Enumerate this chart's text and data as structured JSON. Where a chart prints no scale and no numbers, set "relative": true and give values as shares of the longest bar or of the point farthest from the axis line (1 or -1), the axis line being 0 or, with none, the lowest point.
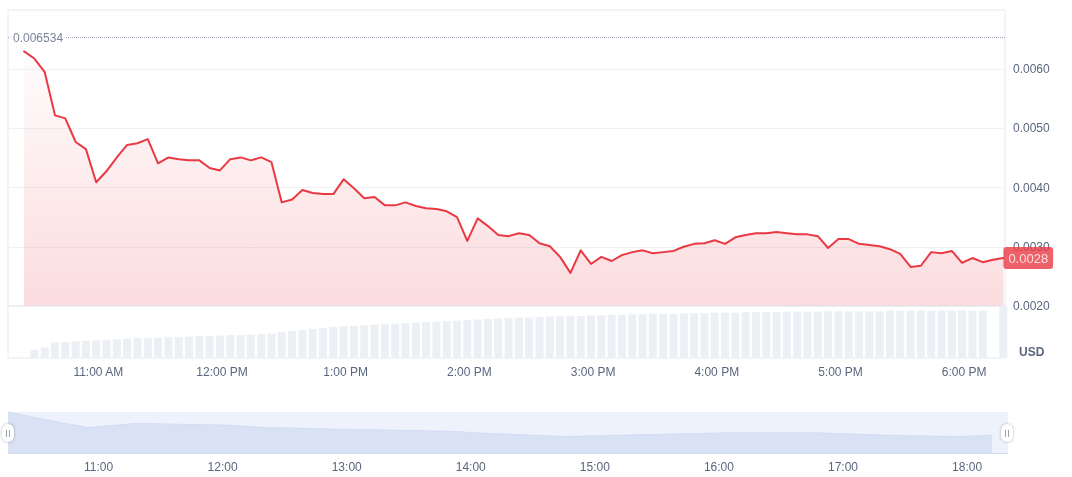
{
  "chart_data": [
    {
      "type": "area",
      "ylabel": "USD",
      "color": "#ea3943",
      "xlim": [
        10.27,
        18.33
      ],
      "ylim": [
        0.002,
        0.007
      ],
      "yticks": [
        {
          "value": 0.002,
          "label": "0.0020"
        },
        {
          "value": 0.003,
          "label": "0.0030"
        },
        {
          "value": 0.004,
          "label": "0.0040"
        },
        {
          "value": 0.005,
          "label": "0.0050"
        },
        {
          "value": 0.006,
          "label": "0.0060"
        }
      ],
      "tick_labels": "y",
      "grid": "y",
      "marker": "none",
      "line_style": "solid",
      "x": [
        10.4,
        10.483,
        10.567,
        10.65,
        10.733,
        10.817,
        10.9,
        10.983,
        11.067,
        11.15,
        11.233,
        11.317,
        11.4,
        11.483,
        11.567,
        11.65,
        11.733,
        11.817,
        11.9,
        11.983,
        12.067,
        12.15,
        12.233,
        12.317,
        12.4,
        12.483,
        12.567,
        12.65,
        12.733,
        12.817,
        12.9,
        12.983,
        13.067,
        13.15,
        13.233,
        13.317,
        13.4,
        13.483,
        13.567,
        13.65,
        13.733,
        13.817,
        13.9,
        13.983,
        14.067,
        14.15,
        14.233,
        14.317,
        14.4,
        14.483,
        14.567,
        14.65,
        14.733,
        14.817,
        14.9,
        14.983,
        15.067,
        15.15,
        15.233,
        15.317,
        15.4,
        15.483,
        15.567,
        15.65,
        15.733,
        15.817,
        15.9,
        15.983,
        16.067,
        16.15,
        16.233,
        16.317,
        16.4,
        16.483,
        16.567,
        16.65,
        16.733,
        16.817,
        16.9,
        16.983,
        17.067,
        17.15,
        17.233,
        17.317,
        17.4,
        17.483,
        17.567,
        17.65,
        17.733,
        17.817,
        17.9,
        17.983,
        18.067,
        18.15,
        18.233,
        18.317
      ],
      "values": [
        0.0063,
        0.00618,
        0.00595,
        0.00522,
        0.00517,
        0.00477,
        0.00465,
        0.00409,
        0.00428,
        0.00451,
        0.00472,
        0.00475,
        0.00482,
        0.00441,
        0.00451,
        0.00448,
        0.00446,
        0.00446,
        0.00433,
        0.00429,
        0.00448,
        0.00451,
        0.00446,
        0.00451,
        0.00443,
        0.00375,
        0.0038,
        0.00396,
        0.00391,
        0.00389,
        0.00389,
        0.00414,
        0.00399,
        0.00382,
        0.00384,
        0.0037,
        0.0037,
        0.00375,
        0.00369,
        0.00365,
        0.00364,
        0.0036,
        0.0035,
        0.0031,
        0.00348,
        0.00335,
        0.0032,
        0.00318,
        0.00323,
        0.0032,
        0.00306,
        0.00301,
        0.00283,
        0.00256,
        0.00294,
        0.00271,
        0.00283,
        0.00276,
        0.00286,
        0.00291,
        0.00294,
        0.00289,
        0.00291,
        0.00293,
        0.003,
        0.00305,
        0.00306,
        0.00311,
        0.00305,
        0.00316,
        0.0032,
        0.00323,
        0.00323,
        0.00325,
        0.00323,
        0.00321,
        0.00321,
        0.00318,
        0.00298,
        0.00313,
        0.00313,
        0.00305,
        0.00303,
        0.00301,
        0.00296,
        0.00288,
        0.00266,
        0.00268,
        0.00291,
        0.00289,
        0.00293,
        0.00273,
        0.00281,
        0.00274,
        0.00278,
        0.00281
      ],
      "ref_lines": [
        {
          "axis": "y",
          "value": 0.006534,
          "label": "0.006534",
          "color": "#9aa3b0",
          "line_style": "dotted"
        }
      ],
      "annotations": [
        {
          "text": "0.0028",
          "x": 18.317,
          "y": 0.00281
        }
      ]
    },
    {
      "type": "bar",
      "relative": true,
      "color": "#eceff3",
      "xlim": [
        10.27,
        18.33
      ],
      "xticks": [
        {
          "value": 11,
          "label": "11:00 AM"
        },
        {
          "value": 12,
          "label": "12:00 PM"
        },
        {
          "value": 13,
          "label": "1:00 PM"
        },
        {
          "value": 14,
          "label": "2:00 PM"
        },
        {
          "value": 15,
          "label": "3:00 PM"
        },
        {
          "value": 16,
          "label": "4:00 PM"
        },
        {
          "value": 17,
          "label": "5:00 PM"
        },
        {
          "value": 18,
          "label": "6:00 PM"
        }
      ],
      "tick_labels": "x",
      "grid": false,
      "x": [
        10.483,
        10.567,
        10.65,
        10.733,
        10.817,
        10.9,
        10.983,
        11.067,
        11.15,
        11.233,
        11.317,
        11.4,
        11.483,
        11.567,
        11.65,
        11.733,
        11.817,
        11.9,
        11.983,
        12.067,
        12.15,
        12.233,
        12.317,
        12.4,
        12.483,
        12.567,
        12.65,
        12.733,
        12.817,
        12.9,
        12.983,
        13.067,
        13.15,
        13.233,
        13.317,
        13.4,
        13.483,
        13.567,
        13.65,
        13.733,
        13.817,
        13.9,
        13.983,
        14.067,
        14.15,
        14.233,
        14.317,
        14.4,
        14.483,
        14.567,
        14.65,
        14.733,
        14.817,
        14.9,
        14.983,
        15.067,
        15.15,
        15.233,
        15.317,
        15.4,
        15.483,
        15.567,
        15.65,
        15.733,
        15.817,
        15.9,
        15.983,
        16.067,
        16.15,
        16.233,
        16.317,
        16.4,
        16.483,
        16.567,
        16.65,
        16.733,
        16.817,
        16.9,
        16.983,
        17.067,
        17.15,
        17.233,
        17.317,
        17.4,
        17.483,
        17.567,
        17.65,
        17.733,
        17.817,
        17.9,
        17.983,
        18.067,
        18.15,
        18.317
      ],
      "values": [
        0.16,
        0.2,
        0.3,
        0.31,
        0.32,
        0.33,
        0.34,
        0.35,
        0.36,
        0.37,
        0.38,
        0.38,
        0.39,
        0.4,
        0.4,
        0.41,
        0.42,
        0.42,
        0.43,
        0.44,
        0.44,
        0.45,
        0.46,
        0.47,
        0.5,
        0.52,
        0.54,
        0.56,
        0.58,
        0.6,
        0.61,
        0.62,
        0.63,
        0.64,
        0.65,
        0.66,
        0.67,
        0.68,
        0.69,
        0.7,
        0.71,
        0.72,
        0.73,
        0.74,
        0.75,
        0.76,
        0.77,
        0.78,
        0.78,
        0.79,
        0.8,
        0.8,
        0.81,
        0.81,
        0.82,
        0.82,
        0.83,
        0.83,
        0.84,
        0.84,
        0.85,
        0.85,
        0.85,
        0.86,
        0.86,
        0.86,
        0.87,
        0.87,
        0.87,
        0.88,
        0.88,
        0.88,
        0.88,
        0.89,
        0.89,
        0.89,
        0.89,
        0.9,
        0.9,
        0.9,
        0.9,
        0.9,
        0.9,
        0.91,
        0.91,
        0.91,
        0.91,
        0.91,
        0.91,
        0.91,
        0.91,
        0.91,
        0.91,
        1
      ]
    },
    {
      "type": "area",
      "relative": true,
      "color": "#d3dcf3",
      "xlim": [
        10.27,
        18.33
      ],
      "xticks": [
        {
          "value": 11,
          "label": "11:00"
        },
        {
          "value": 12,
          "label": "12:00"
        },
        {
          "value": 13,
          "label": "13:00"
        },
        {
          "value": 14,
          "label": "14:00"
        },
        {
          "value": 15,
          "label": "15:00"
        },
        {
          "value": 16,
          "label": "16:00"
        },
        {
          "value": 17,
          "label": "17:00"
        },
        {
          "value": 18,
          "label": "18:00"
        }
      ],
      "tick_labels": "x",
      "grid": "x",
      "marker": "none",
      "x": [
        10.27,
        10.58,
        10.91,
        11.3,
        12.02,
        12.35,
        12.95,
        13.84,
        14.05,
        14.77,
        15.16,
        16.04,
        16.82,
        17.37,
        17.92,
        18.2
      ],
      "values": [
        1,
        0.81,
        0.62,
        0.72,
        0.68,
        0.62,
        0.58,
        0.53,
        0.49,
        0.4,
        0.43,
        0.49,
        0.49,
        0.43,
        0.4,
        0.43
      ]
    }
  ]
}
